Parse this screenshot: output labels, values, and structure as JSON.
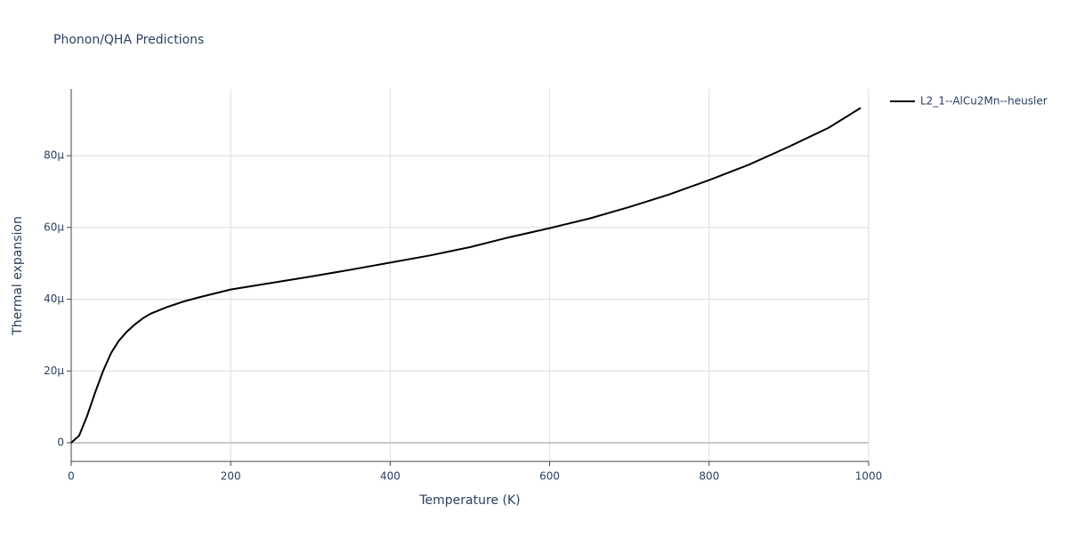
{
  "chart_data": {
    "type": "line",
    "title": "Phonon/QHA Predictions",
    "x_label": "Temperature (K)",
    "y_label": "Thermal expansion",
    "x": [
      0,
      10,
      20,
      30,
      40,
      50,
      60,
      70,
      80,
      90,
      100,
      120,
      140,
      160,
      200,
      250,
      300,
      350,
      400,
      450,
      500,
      550,
      600,
      650,
      700,
      750,
      800,
      850,
      900,
      950,
      990
    ],
    "series": [
      {
        "name": "L2_1--AlCu2Mn--heusler",
        "color": "#000000",
        "values": [
          0,
          2e-06,
          7.5e-06,
          1.4e-05,
          2e-05,
          2.5e-05,
          2.85e-05,
          3.1e-05,
          3.3e-05,
          3.47e-05,
          3.6e-05,
          3.78e-05,
          3.93e-05,
          4.05e-05,
          4.27e-05,
          4.45e-05,
          4.63e-05,
          4.82e-05,
          5.02e-05,
          5.22e-05,
          5.45e-05,
          5.73e-05,
          5.98e-05,
          6.25e-05,
          6.57e-05,
          6.92e-05,
          7.32e-05,
          7.75e-05,
          8.25e-05,
          8.78e-05,
          9.33e-05
        ]
      }
    ],
    "xlim": [
      0,
      1000
    ],
    "xticks": [
      0,
      200,
      400,
      600,
      800,
      1000
    ],
    "ylim": [
      -5.2e-06,
      9.86e-05
    ],
    "yticks": [
      0,
      {
        "value": 2e-05,
        "label": "20μ"
      },
      {
        "value": 4e-05,
        "label": "40μ"
      },
      {
        "value": 6e-05,
        "label": "60μ"
      },
      {
        "value": 8e-05,
        "label": "80μ"
      }
    ],
    "grid": true,
    "legend": "top-right"
  }
}
